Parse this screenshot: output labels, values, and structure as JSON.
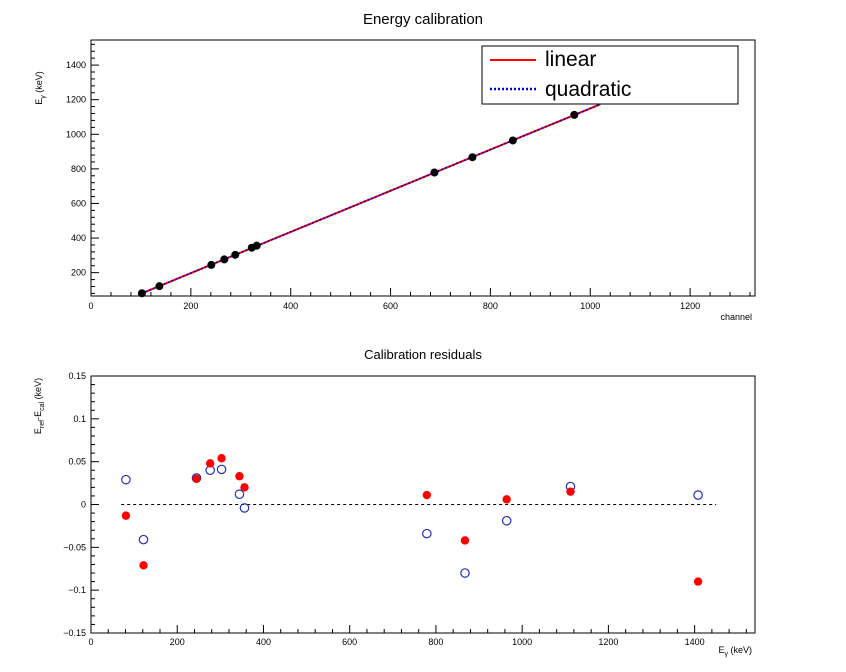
{
  "chart_data": [
    {
      "type": "scatter",
      "title": "Energy calibration",
      "xlabel": "channel",
      "ylabel": "Eγ (keV)",
      "ylabel_main": "E",
      "ylabel_sub": "γ",
      "ylabel_rest": " (keV)",
      "xlim": [
        0,
        1330
      ],
      "ylim": [
        65,
        1545
      ],
      "xticks": [
        0,
        200,
        400,
        600,
        800,
        1000,
        1200
      ],
      "yticks": [
        200,
        400,
        600,
        800,
        1000,
        1200,
        1400
      ],
      "x": [
        102,
        137,
        241,
        267,
        289,
        322,
        332,
        688,
        764,
        845,
        968
      ],
      "y": [
        80.99,
        121.78,
        244.7,
        276.4,
        302.85,
        344.28,
        356.01,
        778.9,
        867.38,
        964.08,
        1112.08
      ],
      "series": [
        {
          "name": "linear",
          "color": "#ff0000",
          "style": "solid",
          "x_range": [
            102,
            1020
          ]
        },
        {
          "name": "quadratic",
          "color": "#0000cc",
          "style": "dotted",
          "x_range": [
            102,
            1020
          ]
        }
      ],
      "markers": {
        "color": "#000000",
        "style": "filled-circle"
      },
      "legend_position": "top-right",
      "legend": {
        "linear": "linear",
        "quadratic": "quadratic"
      }
    },
    {
      "type": "scatter",
      "title": "Calibration residuals",
      "xlabel": "Eγ (keV)",
      "xlabel_main": "E",
      "xlabel_sub": "γ",
      "xlabel_rest": " (keV)",
      "ylabel": "Eref-Ecal (keV)",
      "ylabel_parts": {
        "e1": "E",
        "s1": "ref",
        "mid": "-E",
        "s2": "cal",
        "rest": " (keV)"
      },
      "xlim": [
        0,
        1540
      ],
      "ylim": [
        -0.15,
        0.15
      ],
      "xticks": [
        0,
        200,
        400,
        600,
        800,
        1000,
        1200,
        1400
      ],
      "yticks": [
        -0.15,
        -0.1,
        -0.05,
        0,
        0.05,
        0.1,
        0.15
      ],
      "ytick_labels": [
        "−0.15",
        "−0.1",
        "−0.05",
        "0",
        "0.05",
        "0.1",
        "0.15"
      ],
      "zero_line": {
        "x_range": [
          70,
          1450
        ],
        "style": "dashed"
      },
      "series": [
        {
          "name": "linear",
          "color": "#ff0000",
          "style": "filled-circle",
          "x": [
            80.99,
            121.78,
            244.7,
            276.4,
            302.85,
            344.28,
            356.01,
            778.9,
            867.38,
            964.08,
            1112.08,
            1408.01
          ],
          "values": [
            -0.013,
            -0.071,
            0.03,
            0.048,
            0.054,
            0.033,
            0.02,
            0.011,
            -0.042,
            0.006,
            0.015,
            -0.09
          ]
        },
        {
          "name": "quadratic",
          "color": "#1f2fbf",
          "style": "open-circle",
          "x": [
            80.99,
            121.78,
            244.7,
            276.4,
            302.85,
            344.28,
            356.01,
            778.9,
            867.38,
            964.08,
            1112.08,
            1408.01
          ],
          "values": [
            0.029,
            -0.041,
            0.031,
            0.04,
            0.041,
            0.012,
            -0.004,
            -0.034,
            -0.08,
            -0.019,
            0.021,
            0.011
          ]
        }
      ]
    }
  ]
}
